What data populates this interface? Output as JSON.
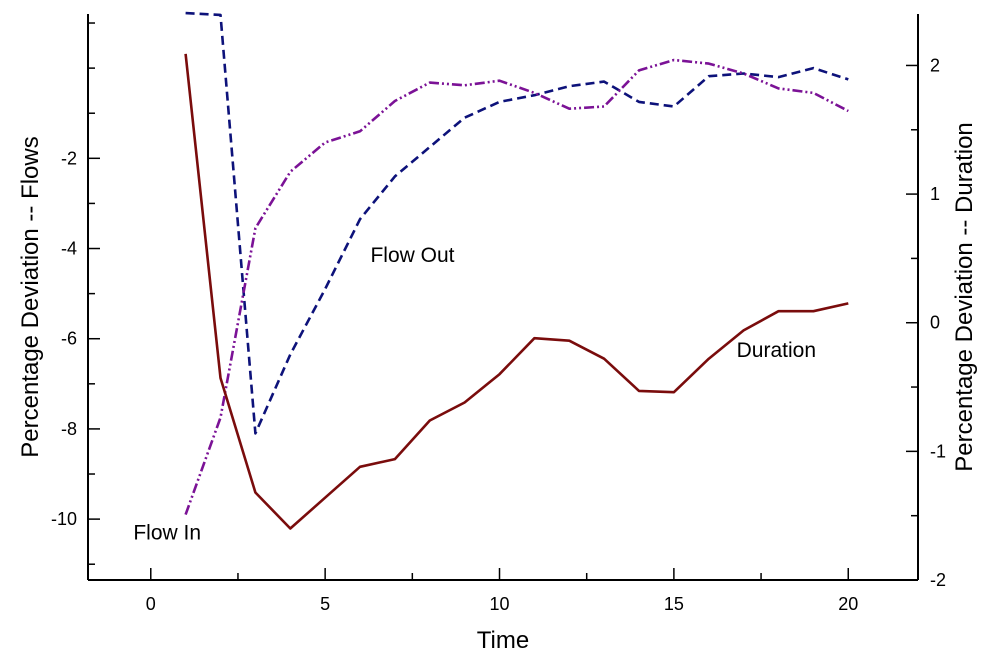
{
  "chart_data": {
    "type": "line",
    "title": "",
    "xlabel": "Time",
    "ylabel_left": "Percentage Deviation -- Flows",
    "ylabel_right": "Percentage Deviation -- Duration",
    "xlim": [
      -1.8,
      22
    ],
    "ylim_left": [
      -11.35,
      1.2
    ],
    "ylim_right": [
      -2,
      2.4
    ],
    "x_ticks": [
      0,
      5,
      10,
      15,
      20
    ],
    "y_ticks_left": [
      -10,
      -8,
      -6,
      -4,
      -2
    ],
    "y_ticks_right": [
      -2,
      -1,
      0,
      1,
      2
    ],
    "grid": false,
    "legend": "none",
    "series": [
      {
        "axis": "left",
        "color": "#0d127a",
        "dash": "dashed",
        "x": [
          1,
          2,
          3,
          4,
          5,
          6,
          7,
          8,
          9,
          10,
          11,
          12,
          13,
          14,
          15,
          16,
          17,
          18,
          19,
          20
        ],
        "y": [
          1.22,
          1.18,
          -8.1,
          -6.35,
          -4.9,
          -3.35,
          -2.4,
          -1.75,
          -1.1,
          -0.75,
          -0.6,
          -0.4,
          -0.3,
          -0.75,
          -0.85,
          -0.18,
          -0.12,
          -0.2,
          0.0,
          -0.25
        ]
      },
      {
        "axis": "left",
        "color": "#7b1296",
        "dash": "dash-dot-dot",
        "x": [
          1,
          2,
          3,
          4,
          5,
          6,
          7,
          8,
          9,
          10,
          11,
          12,
          13,
          14,
          15,
          16,
          17,
          18,
          19,
          20
        ],
        "y": [
          -9.9,
          -7.75,
          -3.55,
          -2.3,
          -1.65,
          -1.4,
          -0.73,
          -0.32,
          -0.38,
          -0.28,
          -0.55,
          -0.9,
          -0.85,
          -0.05,
          0.18,
          0.1,
          -0.12,
          -0.45,
          -0.55,
          -0.95
        ]
      },
      {
        "axis": "right",
        "color": "#7a0c0c",
        "dash": "solid",
        "x": [
          1,
          2,
          3,
          4,
          5,
          6,
          7,
          8,
          9,
          10,
          11,
          12,
          13,
          14,
          15,
          16,
          17,
          18,
          19,
          20
        ],
        "y": [
          2.09,
          -0.43,
          -1.32,
          -1.6,
          -1.36,
          -1.12,
          -1.06,
          -0.76,
          -0.62,
          -0.4,
          -0.12,
          -0.14,
          -0.28,
          -0.53,
          -0.54,
          -0.28,
          -0.06,
          0.09,
          0.09,
          0.15
        ]
      }
    ],
    "annotations": [
      {
        "text": "Flow In",
        "x": -0.5,
        "y": -10.45,
        "axis": "left"
      },
      {
        "text": "Flow Out",
        "x": 6.3,
        "y": -4.3,
        "axis": "left"
      },
      {
        "text": "Duration",
        "x": 16.8,
        "y": -6.4,
        "axis": "left"
      }
    ]
  }
}
